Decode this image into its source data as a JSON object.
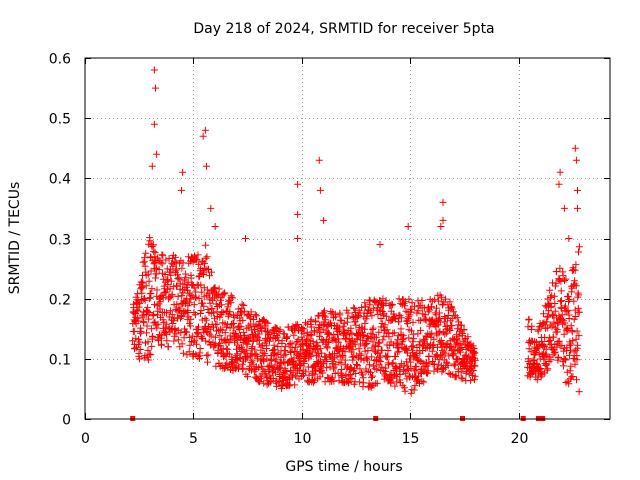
{
  "chart_data": {
    "type": "scatter",
    "title": "Day 218 of 2024, SRMTID for receiver 5pta",
    "xlabel": "GPS time / hours",
    "ylabel": "SRMTID / TECUs",
    "xlim": [
      0,
      24.2
    ],
    "ylim": [
      0,
      0.6
    ],
    "xticks": [
      0,
      5,
      10,
      15,
      20
    ],
    "xtick_labels": [
      "0",
      "5",
      "10",
      "15",
      "20"
    ],
    "yticks": [
      0,
      0.1,
      0.2,
      0.3,
      0.4,
      0.5,
      0.6
    ],
    "ytick_labels": [
      "0",
      "0.1",
      "0.2",
      "0.3",
      "0.4",
      "0.5",
      "0.6"
    ],
    "grid": true,
    "marker": "+",
    "color": "#ff0000",
    "zero_markers": [
      2.2,
      13.4,
      17.4,
      20.2,
      20.9,
      21.1
    ],
    "envelope": [
      [
        2.2,
        0.12,
        0.19
      ],
      [
        2.6,
        0.07,
        0.25
      ],
      [
        3.0,
        0.1,
        0.32
      ],
      [
        3.3,
        0.12,
        0.27
      ],
      [
        3.8,
        0.12,
        0.28
      ],
      [
        4.4,
        0.11,
        0.27
      ],
      [
        5.0,
        0.1,
        0.27
      ],
      [
        5.5,
        0.1,
        0.3
      ],
      [
        6.0,
        0.08,
        0.22
      ],
      [
        7.0,
        0.08,
        0.2
      ],
      [
        8.0,
        0.06,
        0.17
      ],
      [
        9.0,
        0.05,
        0.15
      ],
      [
        10.0,
        0.06,
        0.16
      ],
      [
        11.0,
        0.06,
        0.18
      ],
      [
        12.0,
        0.06,
        0.18
      ],
      [
        13.0,
        0.05,
        0.2
      ],
      [
        14.0,
        0.06,
        0.2
      ],
      [
        15.0,
        0.04,
        0.2
      ],
      [
        16.0,
        0.07,
        0.2
      ],
      [
        16.6,
        0.08,
        0.22
      ],
      [
        17.0,
        0.07,
        0.18
      ],
      [
        17.6,
        0.06,
        0.14
      ],
      [
        18.0,
        0.06,
        0.12
      ]
    ],
    "envelope_late": [
      [
        20.4,
        0.07,
        0.18
      ],
      [
        20.8,
        0.06,
        0.14
      ],
      [
        21.3,
        0.08,
        0.2
      ],
      [
        21.8,
        0.09,
        0.26
      ],
      [
        22.3,
        0.05,
        0.23
      ],
      [
        22.8,
        0.03,
        0.3
      ]
    ],
    "highlights": [
      [
        3.2,
        0.58
      ],
      [
        3.25,
        0.55
      ],
      [
        3.2,
        0.49
      ],
      [
        3.3,
        0.44
      ],
      [
        3.1,
        0.42
      ],
      [
        5.55,
        0.48
      ],
      [
        5.45,
        0.47
      ],
      [
        5.6,
        0.42
      ],
      [
        4.5,
        0.41
      ],
      [
        4.45,
        0.38
      ],
      [
        5.8,
        0.35
      ],
      [
        6.0,
        0.32
      ],
      [
        7.4,
        0.3
      ],
      [
        9.8,
        0.39
      ],
      [
        9.8,
        0.34
      ],
      [
        10.8,
        0.43
      ],
      [
        10.85,
        0.38
      ],
      [
        11.0,
        0.33
      ],
      [
        14.9,
        0.32
      ],
      [
        16.5,
        0.36
      ],
      [
        16.5,
        0.33
      ],
      [
        16.4,
        0.32
      ],
      [
        21.9,
        0.41
      ],
      [
        21.85,
        0.39
      ],
      [
        22.6,
        0.45
      ],
      [
        22.65,
        0.43
      ],
      [
        22.7,
        0.38
      ],
      [
        22.7,
        0.35
      ],
      [
        22.1,
        0.35
      ],
      [
        22.3,
        0.3
      ],
      [
        13.6,
        0.29
      ],
      [
        9.8,
        0.3
      ]
    ]
  }
}
